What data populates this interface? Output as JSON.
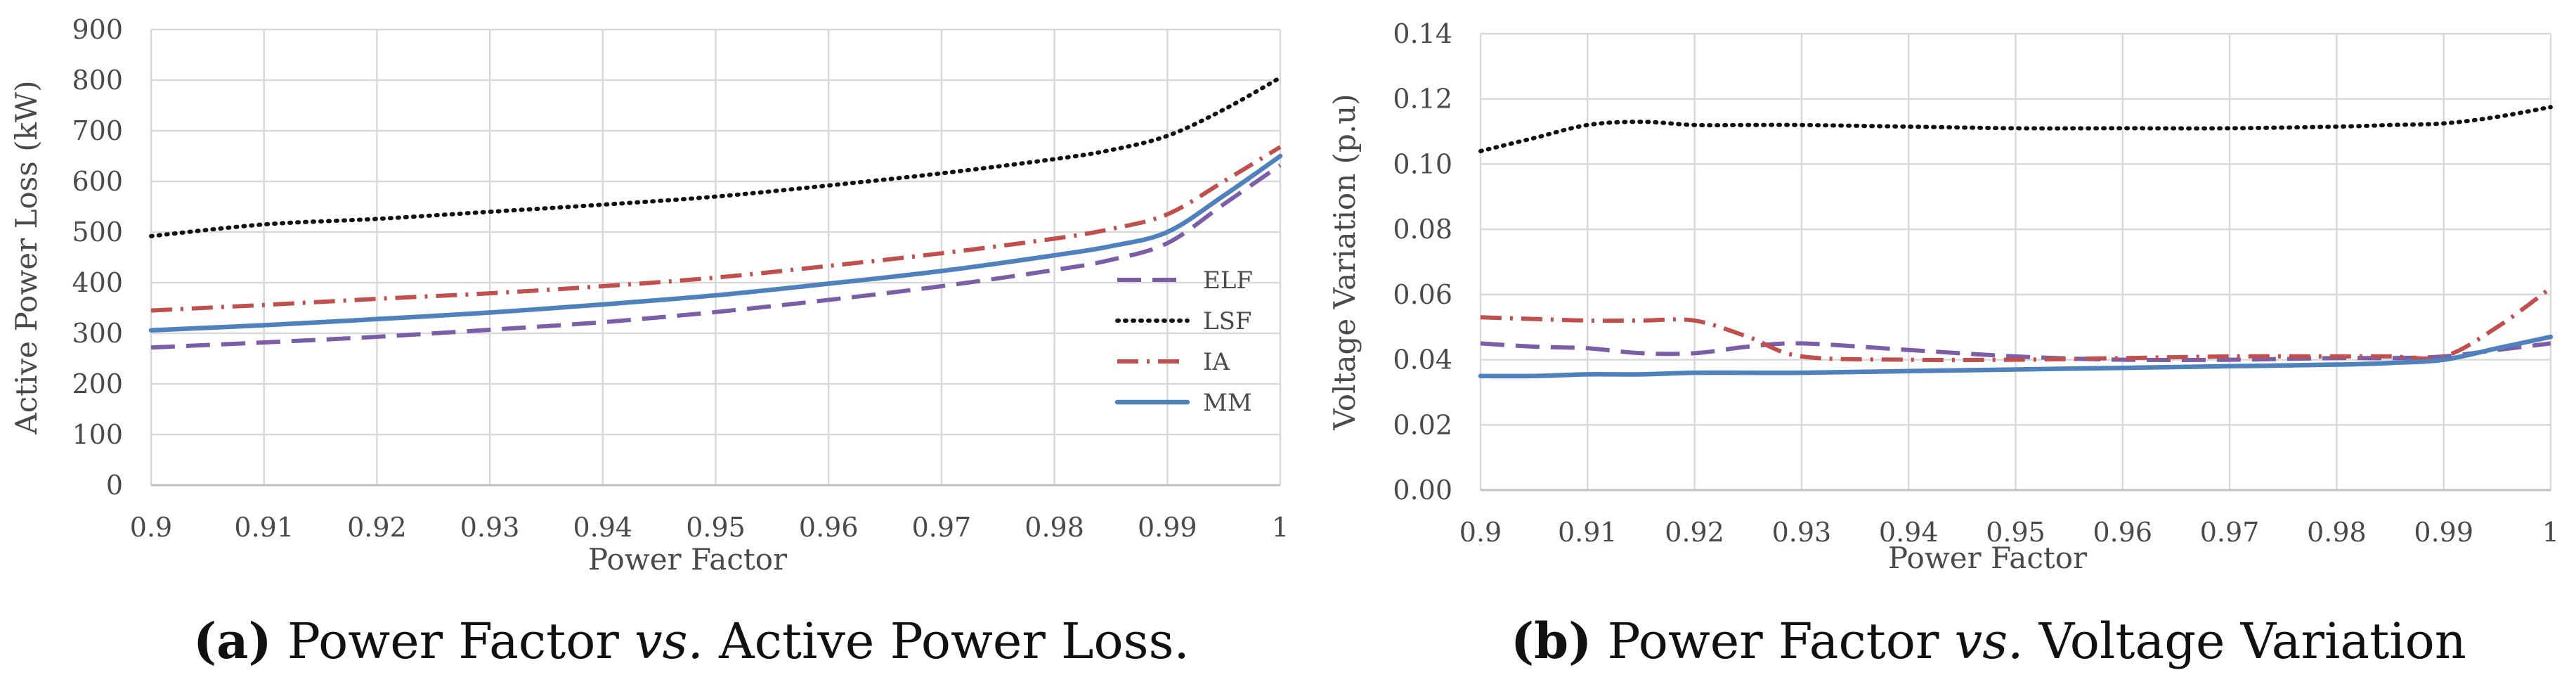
{
  "colors": {
    "ELF": "#7b5ea7",
    "LSF": "#111111",
    "IA": "#c0504d",
    "MM": "#4f81bd",
    "grid": "#d9d9d9"
  },
  "charts": [
    {
      "caption": {
        "tag": "(a)",
        "pre": "Power Factor",
        "vs": "vs.",
        "post": "Active Power Loss."
      },
      "chart_data": {
        "type": "line",
        "xlabel": "Power Factor",
        "ylabel": "Active Power Loss (kW)",
        "xlim": [
          0.9,
          1.0
        ],
        "ylim": [
          0,
          900
        ],
        "x_ticks": [
          "0.9",
          "0.91",
          "0.92",
          "0.93",
          "0.94",
          "0.95",
          "0.96",
          "0.97",
          "0.98",
          "0.99",
          "1"
        ],
        "y_ticks": [
          "0",
          "100",
          "200",
          "300",
          "400",
          "500",
          "600",
          "700",
          "800",
          "900"
        ],
        "grid": true,
        "legend": "bottom-right",
        "x": [
          0.9,
          0.91,
          0.92,
          0.93,
          0.94,
          0.95,
          0.96,
          0.97,
          0.98,
          0.985,
          0.99,
          0.995,
          1.0
        ],
        "series": [
          {
            "name": "ELF",
            "style": "dashed",
            "values": [
              272,
              282,
              293,
              307,
              322,
              342,
              366,
              393,
              425,
              445,
              478,
              555,
              632
            ]
          },
          {
            "name": "LSF",
            "style": "dotted",
            "values": [
              492,
              515,
              526,
              540,
              554,
              570,
              592,
              616,
              644,
              662,
              690,
              742,
              805
            ]
          },
          {
            "name": "IA",
            "style": "dashdot",
            "values": [
              345,
              356,
              368,
              379,
              393,
              410,
              433,
              458,
              487,
              506,
              535,
              600,
              668
            ]
          },
          {
            "name": "MM",
            "style": "solid",
            "values": [
              306,
              316,
              328,
              341,
              357,
              375,
              398,
              423,
              454,
              472,
              500,
              572,
              650
            ]
          }
        ]
      }
    },
    {
      "caption": {
        "tag": "(b)",
        "pre": "Power Factor",
        "vs": "vs.",
        "post": "Voltage Variation"
      },
      "chart_data": {
        "type": "line",
        "xlabel": "Power Factor",
        "ylabel": "Voltage Variation (p.u)",
        "xlim": [
          0.9,
          1.0
        ],
        "ylim": [
          0,
          0.14
        ],
        "x_ticks": [
          "0.9",
          "0.91",
          "0.92",
          "0.93",
          "0.94",
          "0.95",
          "0.96",
          "0.97",
          "0.98",
          "0.99",
          "1"
        ],
        "y_ticks": [
          "0.00",
          "0.02",
          "0.04",
          "0.06",
          "0.08",
          "0.10",
          "0.12",
          "0.14"
        ],
        "grid": true,
        "legend": "none",
        "x": [
          0.9,
          0.905,
          0.91,
          0.915,
          0.92,
          0.925,
          0.93,
          0.94,
          0.95,
          0.96,
          0.97,
          0.98,
          0.985,
          0.99,
          0.995,
          1.0
        ],
        "series": [
          {
            "name": "ELF",
            "style": "dashed",
            "values": [
              0.045,
              0.044,
              0.0435,
              0.042,
              0.042,
              0.044,
              0.045,
              0.043,
              0.041,
              0.04,
              0.04,
              0.0405,
              0.0405,
              0.041,
              0.043,
              0.045
            ]
          },
          {
            "name": "LSF",
            "style": "dotted",
            "values": [
              0.104,
              0.108,
              0.112,
              0.113,
              0.112,
              0.112,
              0.112,
              0.1115,
              0.111,
              0.111,
              0.111,
              0.1115,
              0.112,
              0.1125,
              0.1145,
              0.1175
            ]
          },
          {
            "name": "IA",
            "style": "dashdot",
            "values": [
              0.053,
              0.0525,
              0.052,
              0.052,
              0.052,
              0.047,
              0.041,
              0.04,
              0.04,
              0.0405,
              0.041,
              0.041,
              0.041,
              0.041,
              0.05,
              0.062
            ]
          },
          {
            "name": "MM",
            "style": "solid",
            "values": [
              0.035,
              0.035,
              0.0355,
              0.0355,
              0.036,
              0.036,
              0.036,
              0.0365,
              0.037,
              0.0375,
              0.038,
              0.0385,
              0.039,
              0.04,
              0.0435,
              0.047
            ]
          }
        ]
      }
    }
  ]
}
